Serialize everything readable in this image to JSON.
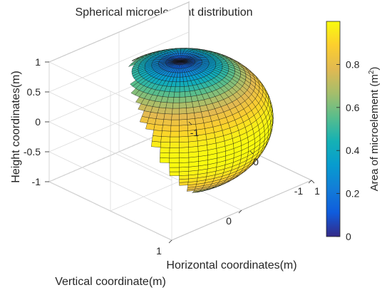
{
  "chart_data": {
    "type": "surface3d",
    "title": "Spherical microelement distribution",
    "xlabel": "Horizontal coordinates(m)",
    "ylabel": "Vertical coordinate(m)",
    "zlabel": "Height coordinates(m)",
    "xlim": [
      -1,
      1
    ],
    "ylim": [
      -1,
      1
    ],
    "zlim": [
      -1,
      1
    ],
    "x_ticks": [
      "-1",
      "0",
      "1"
    ],
    "y_ticks": [
      "-1",
      "0",
      "1"
    ],
    "z_ticks": [
      "-1",
      "-0.5",
      "0",
      "0.5",
      "1"
    ],
    "surface": {
      "shape": "sphere",
      "radius": 1,
      "latitude_divisions": 40,
      "longitude_divisions": 60,
      "color_value_at_pole": 0,
      "color_value_at_equator": 1
    },
    "colorbar": {
      "label": "Area of microelement (m",
      "label_superscript": "2",
      "label_end": ")",
      "range": [
        0,
        1
      ],
      "ticks": [
        "0",
        "0.2",
        "0.4",
        "0.6",
        "0.8"
      ],
      "colormap": "parula"
    },
    "grid": true
  }
}
